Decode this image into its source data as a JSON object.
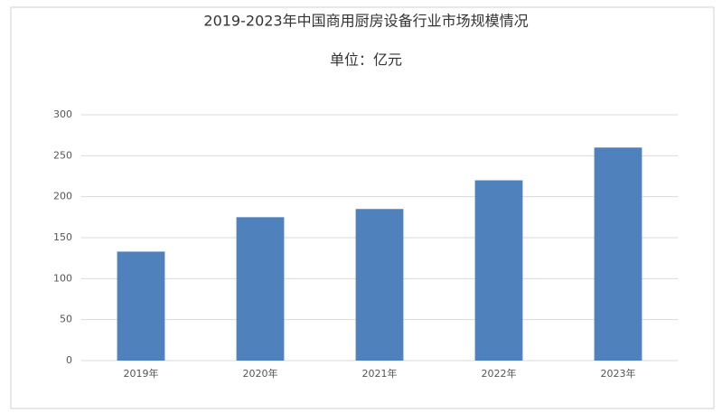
{
  "chart_data": {
    "type": "bar",
    "title": "2019-2023年中国商用厨房设备行业市场规模情况",
    "subtitle": "单位：亿元",
    "categories": [
      "2019年",
      "2020年",
      "2021年",
      "2022年",
      "2023年"
    ],
    "values": [
      133,
      175,
      185,
      220,
      260
    ],
    "color": "#4f81bd",
    "ylim": [
      0,
      300
    ],
    "yticks": [
      0,
      50,
      100,
      150,
      200,
      250,
      300
    ],
    "grid": true
  }
}
